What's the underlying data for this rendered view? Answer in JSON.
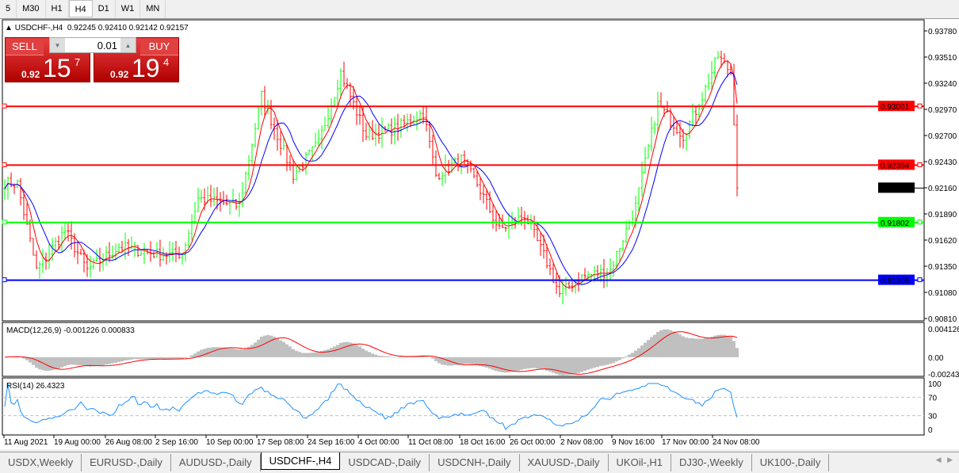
{
  "timeframes": [
    "5",
    "M30",
    "H1",
    "H4",
    "D1",
    "W1",
    "MN"
  ],
  "active_timeframe": "H4",
  "chart": {
    "symbol_title": "USDCHF-,H4",
    "ohlc": "0.92245 0.92410 0.92142 0.92157",
    "price_axis": [
      "0.93780",
      "0.93510",
      "0.93240",
      "0.92970",
      "0.92700",
      "0.92430",
      "0.92160",
      "0.91890",
      "0.91620",
      "0.91350",
      "0.91080",
      "0.90810"
    ],
    "price_range": [
      0.9081,
      0.9378
    ],
    "current_price": "0.92157",
    "hlines": [
      {
        "price": "0.93001",
        "color": "#ff0000"
      },
      {
        "price": "0.92394",
        "color": "#ff0000"
      },
      {
        "price": "0.91802",
        "color": "#00ff00"
      },
      {
        "price": "0.91206",
        "color": "#0000ff"
      }
    ],
    "price_path": [
      [
        0,
        0.9221
      ],
      [
        4,
        0.922
      ],
      [
        10,
        0.9131
      ],
      [
        19,
        0.9172
      ],
      [
        26,
        0.9131
      ],
      [
        36,
        0.9155
      ],
      [
        49,
        0.9147
      ],
      [
        56,
        0.9148
      ],
      [
        61,
        0.9205
      ],
      [
        74,
        0.9197
      ],
      [
        81,
        0.9311
      ],
      [
        86,
        0.927
      ],
      [
        91,
        0.9229
      ],
      [
        99,
        0.9262
      ],
      [
        106,
        0.9335
      ],
      [
        114,
        0.927
      ],
      [
        124,
        0.9278
      ],
      [
        132,
        0.9294
      ],
      [
        136,
        0.9229
      ],
      [
        144,
        0.9245
      ],
      [
        149,
        0.922
      ],
      [
        156,
        0.9172
      ],
      [
        164,
        0.9188
      ],
      [
        171,
        0.9139
      ],
      [
        175,
        0.9106
      ],
      [
        181,
        0.9123
      ],
      [
        191,
        0.9131
      ],
      [
        199,
        0.9197
      ],
      [
        206,
        0.9302
      ],
      [
        214,
        0.927
      ],
      [
        219,
        0.9302
      ],
      [
        225,
        0.9352
      ],
      [
        229,
        0.9335
      ],
      [
        230,
        0.9286
      ],
      [
        231,
        0.9216
      ]
    ],
    "up_color": "#00ff00",
    "down_color": "#ff0000",
    "ma_fast_color": "#ff0000",
    "ma_slow_color": "#0000ff"
  },
  "macd": {
    "label": "MACD(12,26,9) -0.001226 0.000833",
    "axis": [
      "0.004126",
      "0.00",
      "-0.002436"
    ],
    "range": [
      -0.002436,
      0.004126
    ]
  },
  "rsi": {
    "label": "RSI(14) 26.4323",
    "axis": [
      "100",
      "70",
      "30",
      "0"
    ],
    "color": "#1e90ff"
  },
  "time_axis": [
    "11 Aug 2021",
    "19 Aug 00:00",
    "26 Aug 08:00",
    "2 Sep 16:00",
    "10 Sep 00:00",
    "17 Sep 08:00",
    "24 Sep 16:00",
    "4 Oct 00:00",
    "11 Oct 08:00",
    "18 Oct 16:00",
    "26 Oct 00:00",
    "2 Nov 08:00",
    "9 Nov 16:00",
    "17 Nov 00:00",
    "24 Nov 08:00"
  ],
  "trade": {
    "sell_label": "SELL",
    "buy_label": "BUY",
    "lot": "0.01",
    "sell_prefix": "0.92",
    "sell_big": "15",
    "sell_sup": "7",
    "buy_prefix": "0.92",
    "buy_big": "19",
    "buy_sup": "4"
  },
  "tabs": [
    "USDX,Weekly",
    "EURUSD-,Daily",
    "AUDUSD-,Daily",
    "USDCHF-,H4",
    "USDCAD-,Daily",
    "USDCNH-,Daily",
    "XAUUSD-,Daily",
    "UKOil-,H1",
    "DJ30-,Weekly",
    "UK100-,Daily"
  ],
  "active_tab": "USDCHF-,H4"
}
